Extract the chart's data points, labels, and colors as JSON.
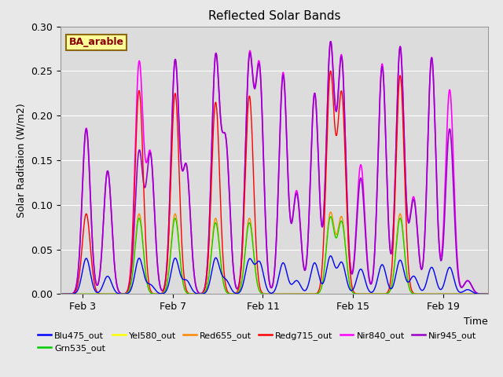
{
  "title": "Reflected Solar Bands",
  "xlabel": "Time",
  "ylabel": "Solar Raditaion (W/m2)",
  "ylim": [
    0,
    0.3
  ],
  "xlim_start": 2.0,
  "xlim_end": 21.0,
  "fig_bg_color": "#e8e8e8",
  "plot_bg_color": "#dcdcdc",
  "annotation_text": "BA_arable",
  "annotation_bg": "#ffff99",
  "annotation_border": "#8b6914",
  "annotation_text_color": "#8b0000",
  "x_ticks_labels": [
    "Feb 3",
    "Feb 7",
    "Feb 11",
    "Feb 15",
    "Feb 19"
  ],
  "x_ticks_pos": [
    3,
    7,
    11,
    15,
    19
  ],
  "series": {
    "Blu475_out": {
      "color": "#0000ff"
    },
    "Grn535_out": {
      "color": "#00cc00"
    },
    "Yel580_out": {
      "color": "#ffff00"
    },
    "Red655_out": {
      "color": "#ff8800"
    },
    "Redg715_out": {
      "color": "#ff0000"
    },
    "Nir840_out": {
      "color": "#ff00ff"
    },
    "Nir945_out": {
      "color": "#9900cc"
    }
  },
  "peaks": [
    {
      "day": 3.15,
      "nir840": 0.186,
      "nir945": 0.185,
      "redg715": 0.09,
      "red655": 0.0,
      "yel580": 0.0,
      "grn535": 0.0,
      "blu475": 0.04
    },
    {
      "day": 4.1,
      "nir840": 0.138,
      "nir945": 0.138,
      "redg715": 0.0,
      "red655": 0.0,
      "yel580": 0.0,
      "grn535": 0.0,
      "blu475": 0.02
    },
    {
      "day": 5.5,
      "nir840": 0.258,
      "nir945": 0.158,
      "redg715": 0.228,
      "red655": 0.09,
      "yel580": 0.085,
      "grn535": 0.085,
      "blu475": 0.04
    },
    {
      "day": 6.0,
      "nir840": 0.155,
      "nir945": 0.155,
      "redg715": 0.0,
      "red655": 0.0,
      "yel580": 0.0,
      "grn535": 0.0,
      "blu475": 0.01
    },
    {
      "day": 7.1,
      "nir840": 0.26,
      "nir945": 0.26,
      "redg715": 0.225,
      "red655": 0.09,
      "yel580": 0.085,
      "grn535": 0.085,
      "blu475": 0.04
    },
    {
      "day": 7.6,
      "nir840": 0.14,
      "nir945": 0.14,
      "redg715": 0.0,
      "red655": 0.0,
      "yel580": 0.0,
      "grn535": 0.0,
      "blu475": 0.015
    },
    {
      "day": 8.9,
      "nir840": 0.262,
      "nir945": 0.262,
      "redg715": 0.215,
      "red655": 0.085,
      "yel580": 0.08,
      "grn535": 0.08,
      "blu475": 0.04
    },
    {
      "day": 9.35,
      "nir840": 0.165,
      "nir945": 0.165,
      "redg715": 0.0,
      "red655": 0.0,
      "yel580": 0.0,
      "grn535": 0.0,
      "blu475": 0.015
    },
    {
      "day": 10.4,
      "nir840": 0.26,
      "nir945": 0.258,
      "redg715": 0.222,
      "red655": 0.085,
      "yel580": 0.08,
      "grn535": 0.08,
      "blu475": 0.038
    },
    {
      "day": 10.85,
      "nir840": 0.248,
      "nir945": 0.245,
      "redg715": 0.0,
      "red655": 0.0,
      "yel580": 0.0,
      "grn535": 0.0,
      "blu475": 0.035
    },
    {
      "day": 11.9,
      "nir840": 0.248,
      "nir945": 0.245,
      "redg715": 0.0,
      "red655": 0.0,
      "yel580": 0.0,
      "grn535": 0.0,
      "blu475": 0.035
    },
    {
      "day": 12.5,
      "nir840": 0.115,
      "nir945": 0.112,
      "redg715": 0.0,
      "red655": 0.0,
      "yel580": 0.0,
      "grn535": 0.0,
      "blu475": 0.015
    },
    {
      "day": 13.3,
      "nir840": 0.225,
      "nir945": 0.225,
      "redg715": 0.0,
      "red655": 0.0,
      "yel580": 0.0,
      "grn535": 0.0,
      "blu475": 0.035
    },
    {
      "day": 14.0,
      "nir840": 0.277,
      "nir945": 0.277,
      "redg715": 0.245,
      "red655": 0.09,
      "yel580": 0.085,
      "grn535": 0.085,
      "blu475": 0.042
    },
    {
      "day": 14.5,
      "nir840": 0.262,
      "nir945": 0.26,
      "redg715": 0.222,
      "red655": 0.085,
      "yel580": 0.08,
      "grn535": 0.08,
      "blu475": 0.035
    },
    {
      "day": 15.35,
      "nir840": 0.145,
      "nir945": 0.13,
      "redg715": 0.0,
      "red655": 0.0,
      "yel580": 0.0,
      "grn535": 0.0,
      "blu475": 0.028
    },
    {
      "day": 16.3,
      "nir840": 0.258,
      "nir945": 0.255,
      "redg715": 0.0,
      "red655": 0.0,
      "yel580": 0.0,
      "grn535": 0.0,
      "blu475": 0.033
    },
    {
      "day": 17.1,
      "nir840": 0.277,
      "nir945": 0.277,
      "redg715": 0.245,
      "red655": 0.09,
      "yel580": 0.085,
      "grn535": 0.085,
      "blu475": 0.038
    },
    {
      "day": 17.7,
      "nir840": 0.108,
      "nir945": 0.105,
      "redg715": 0.0,
      "red655": 0.0,
      "yel580": 0.0,
      "grn535": 0.0,
      "blu475": 0.02
    },
    {
      "day": 18.5,
      "nir840": 0.265,
      "nir945": 0.265,
      "redg715": 0.0,
      "red655": 0.0,
      "yel580": 0.0,
      "grn535": 0.0,
      "blu475": 0.03
    },
    {
      "day": 19.3,
      "nir840": 0.229,
      "nir945": 0.185,
      "redg715": 0.0,
      "red655": 0.0,
      "yel580": 0.0,
      "grn535": 0.0,
      "blu475": 0.03
    },
    {
      "day": 20.1,
      "nir840": 0.015,
      "nir945": 0.015,
      "redg715": 0.0,
      "red655": 0.0,
      "yel580": 0.0,
      "grn535": 0.0,
      "blu475": 0.005
    }
  ],
  "peak_sigma": 0.18
}
